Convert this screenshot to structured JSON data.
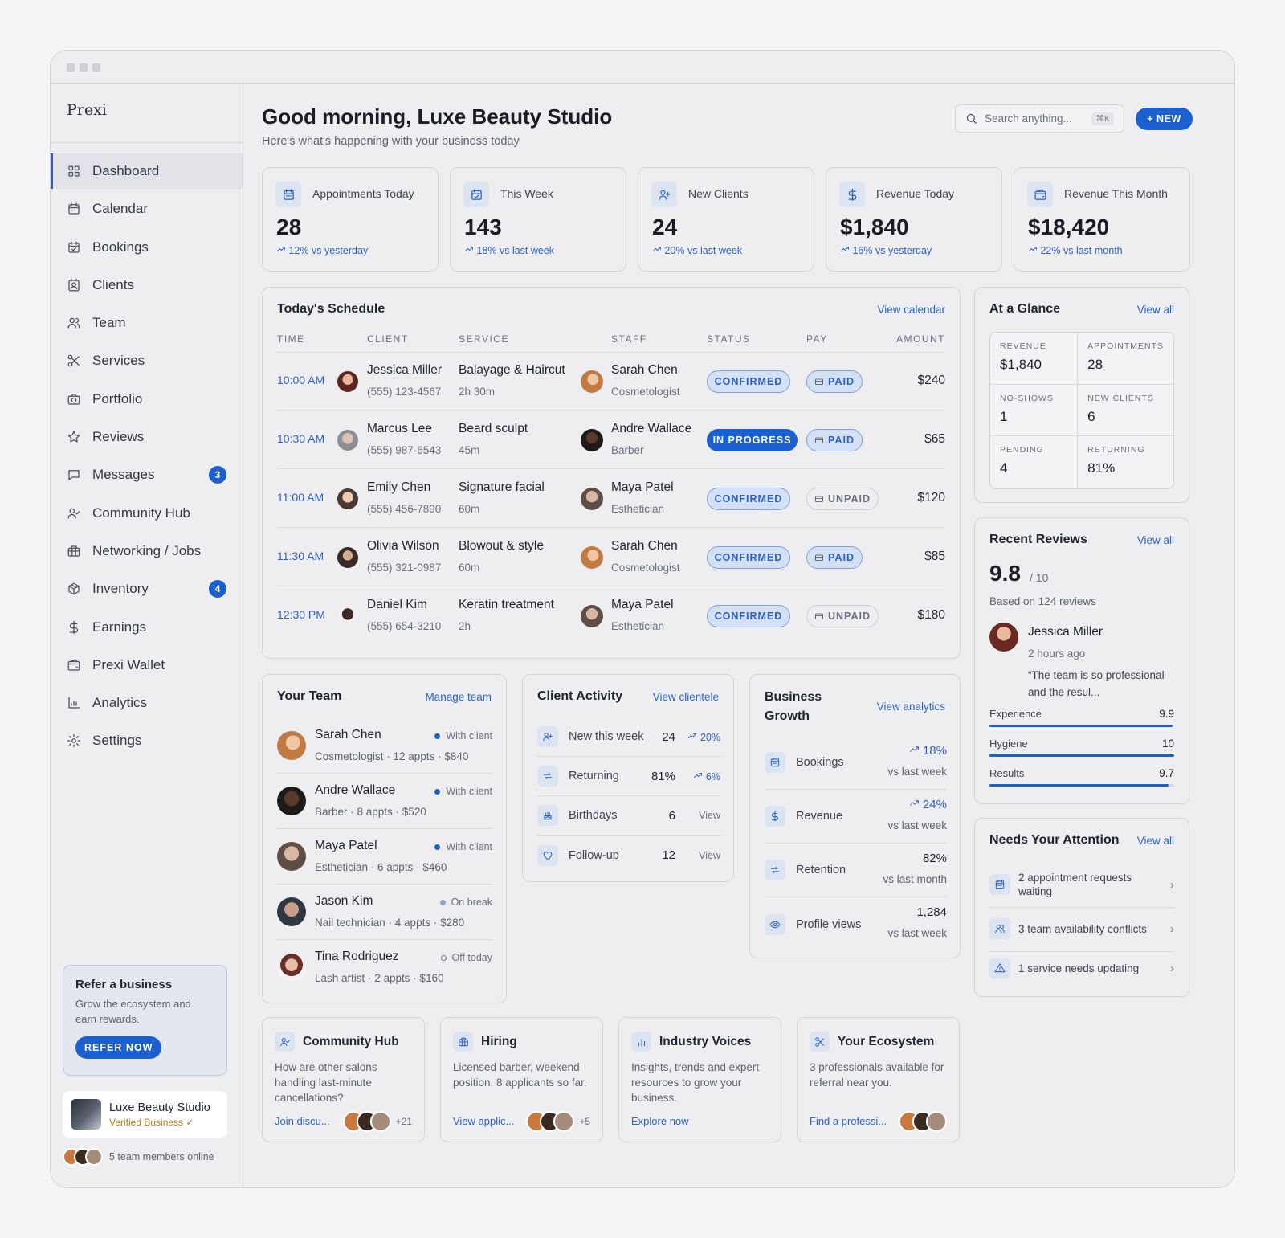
{
  "app": {
    "logo": "Prexi"
  },
  "nav": [
    {
      "label": "Dashboard",
      "icon": "grid-icon",
      "active": true
    },
    {
      "label": "Calendar",
      "icon": "calendar-icon"
    },
    {
      "label": "Bookings",
      "icon": "calendar-check-icon"
    },
    {
      "label": "Clients",
      "icon": "contact-icon"
    },
    {
      "label": "Team",
      "icon": "users-icon"
    },
    {
      "label": "Services",
      "icon": "scissors-icon"
    },
    {
      "label": "Portfolio",
      "icon": "camera-icon"
    },
    {
      "label": "Reviews",
      "icon": "star-icon"
    },
    {
      "label": "Messages",
      "icon": "message-icon",
      "badge": "3"
    },
    {
      "label": "Community Hub",
      "icon": "people-icon"
    },
    {
      "label": "Networking / Jobs",
      "icon": "briefcase-icon"
    },
    {
      "label": "Inventory",
      "icon": "box-icon",
      "badge": "4"
    },
    {
      "label": "Earnings",
      "icon": "dollar-icon"
    },
    {
      "label": "Prexi Wallet",
      "icon": "wallet-icon"
    },
    {
      "label": "Analytics",
      "icon": "chart-icon"
    },
    {
      "label": "Settings",
      "icon": "gear-icon"
    }
  ],
  "refer": {
    "title": "Refer a business",
    "desc": "Grow the ecosystem and earn rewards.",
    "button": "REFER NOW"
  },
  "business": {
    "name": "Luxe Beauty Studio",
    "verified": "Verified Business ✓"
  },
  "online": "5 team members online",
  "header": {
    "greeting": "Good morning, Luxe Beauty Studio",
    "subtitle": "Here's what's happening with your business today",
    "search_placeholder": "Search anything...",
    "search_kbd": "⌘K",
    "new_button": "+ NEW"
  },
  "stats": [
    {
      "label": "Appointments Today",
      "value": "28",
      "delta": "12% vs yesterday",
      "icon": "calendar-icon"
    },
    {
      "label": "This Week",
      "value": "143",
      "delta": "18% vs last week",
      "icon": "calendar-check-icon"
    },
    {
      "label": "New Clients",
      "value": "24",
      "delta": "20% vs last week",
      "icon": "user-plus-icon"
    },
    {
      "label": "Revenue Today",
      "value": "$1,840",
      "delta": "16% vs yesterday",
      "icon": "dollar-icon"
    },
    {
      "label": "Revenue This Month",
      "value": "$18,420",
      "delta": "22% vs last month",
      "icon": "wallet-icon"
    }
  ],
  "schedule": {
    "title": "Today's Schedule",
    "link": "View calendar",
    "columns": [
      "TIME",
      "CLIENT",
      "SERVICE",
      "STAFF",
      "STATUS",
      "PAY",
      "AMOUNT"
    ],
    "rows": [
      {
        "time": "10:00 AM",
        "client": "Jessica Miller",
        "phone": "(555) 123-4567",
        "service": "Balayage & Haircut",
        "duration": "2h 30m",
        "staff": "Sarah Chen",
        "role": "Cosmetologist",
        "status": "CONFIRMED",
        "pay": "PAID",
        "amount": "$240"
      },
      {
        "time": "10:30 AM",
        "client": "Marcus Lee",
        "phone": "(555) 987-6543",
        "service": "Beard sculpt",
        "duration": "45m",
        "staff": "Andre Wallace",
        "role": "Barber",
        "status": "IN PROGRESS",
        "pay": "PAID",
        "amount": "$65"
      },
      {
        "time": "11:00 AM",
        "client": "Emily Chen",
        "phone": "(555) 456-7890",
        "service": "Signature facial",
        "duration": "60m",
        "staff": "Maya Patel",
        "role": "Esthetician",
        "status": "CONFIRMED",
        "pay": "UNPAID",
        "amount": "$120"
      },
      {
        "time": "11:30 AM",
        "client": "Olivia Wilson",
        "phone": "(555) 321-0987",
        "service": "Blowout & style",
        "duration": "60m",
        "staff": "Sarah Chen",
        "role": "Cosmetologist",
        "status": "CONFIRMED",
        "pay": "PAID",
        "amount": "$85"
      },
      {
        "time": "12:30 PM",
        "client": "Daniel Kim",
        "phone": "(555) 654-3210",
        "service": "Keratin treatment",
        "duration": "2h",
        "staff": "Maya Patel",
        "role": "Esthetician",
        "status": "CONFIRMED",
        "pay": "UNPAID",
        "amount": "$180"
      }
    ]
  },
  "glance": {
    "title": "At a Glance",
    "link": "View all",
    "cells": [
      {
        "label": "REVENUE",
        "value": "$1,840"
      },
      {
        "label": "APPOINTMENTS",
        "value": "28"
      },
      {
        "label": "NO-SHOWS",
        "value": "1"
      },
      {
        "label": "NEW CLIENTS",
        "value": "6"
      },
      {
        "label": "PENDING",
        "value": "4"
      },
      {
        "label": "RETURNING",
        "value": "81%"
      }
    ]
  },
  "reviews": {
    "title": "Recent Reviews",
    "link": "View all",
    "score": "9.8",
    "out_of": "/ 10",
    "based": "Based on 124 reviews",
    "reviewer": "Jessica Miller",
    "time": "2 hours ago",
    "quote": "“The team is so professional and the resul...",
    "bars": [
      {
        "label": "Experience",
        "value": "9.9",
        "fraction": 0.99
      },
      {
        "label": "Hygiene",
        "value": "10",
        "fraction": 1.0
      },
      {
        "label": "Results",
        "value": "9.7",
        "fraction": 0.97
      }
    ]
  },
  "attention": {
    "title": "Needs Your Attention",
    "link": "View all",
    "items": [
      {
        "text": "2 appointment requests waiting",
        "icon": "calendar-icon"
      },
      {
        "text": "3 team availability conflicts",
        "icon": "users-icon"
      },
      {
        "text": "1 service needs updating",
        "icon": "warning-icon"
      }
    ]
  },
  "team": {
    "title": "Your Team",
    "link": "Manage team",
    "members": [
      {
        "name": "Sarah Chen",
        "meta": "Cosmetologist · 12 appts · $840",
        "status": "With client",
        "status_color": "#1c5fce"
      },
      {
        "name": "Andre Wallace",
        "meta": "Barber · 8 appts · $520",
        "status": "With client",
        "status_color": "#1c5fce"
      },
      {
        "name": "Maya Patel",
        "meta": "Esthetician · 6 appts · $460",
        "status": "With client",
        "status_color": "#1c5fce"
      },
      {
        "name": "Jason Kim",
        "meta": "Nail technician · 4 appts · $280",
        "status": "On break",
        "status_color": "#8fa6d0"
      },
      {
        "name": "Tina Rodriguez",
        "meta": "Lash artist · 2 appts · $160",
        "status": "Off today",
        "status_color": "#ffffff"
      }
    ]
  },
  "activity": {
    "title": "Client Activity",
    "link": "View clientele",
    "rows": [
      {
        "label": "New this week",
        "value": "24",
        "delta": "20%",
        "icon": "user-plus-icon"
      },
      {
        "label": "Returning",
        "value": "81%",
        "delta": "6%",
        "icon": "repeat-icon"
      },
      {
        "label": "Birthdays",
        "value": "6",
        "action": "View",
        "icon": "cake-icon"
      },
      {
        "label": "Follow-up",
        "value": "12",
        "action": "View",
        "icon": "heart-icon"
      }
    ]
  },
  "growth": {
    "title": "Business Growth",
    "link": "View analytics",
    "rows": [
      {
        "label": "Bookings",
        "value": "18%",
        "sub": "vs last week",
        "up": true,
        "icon": "calendar-icon"
      },
      {
        "label": "Revenue",
        "value": "24%",
        "sub": "vs last week",
        "up": true,
        "icon": "dollar-icon"
      },
      {
        "label": "Retention",
        "value": "82%",
        "sub": "vs last month",
        "up": false,
        "icon": "repeat-icon"
      },
      {
        "label": "Profile views",
        "value": "1,284",
        "sub": "vs last week",
        "up": false,
        "icon": "eye-icon"
      }
    ]
  },
  "bottom_cards": [
    {
      "title": "Community Hub",
      "desc": "How are other salons handling last-minute cancellations?",
      "link": "Join discu...",
      "extra": "+21",
      "icon": "people-icon",
      "avatars": 3
    },
    {
      "title": "Hiring",
      "desc": "Licensed barber, weekend position. 8 applicants so far.",
      "link": "View applic...",
      "extra": "+5",
      "icon": "briefcase-icon",
      "avatars": 3
    },
    {
      "title": "Industry Voices",
      "desc": "Insights, trends and expert resources to grow your business.",
      "link": "Explore now",
      "extra": "",
      "icon": "bars-icon",
      "avatars": 0
    },
    {
      "title": "Your Ecosystem",
      "desc": "3 professionals available for referral near you.",
      "link": "Find a professi...",
      "extra": "",
      "icon": "scissors-icon",
      "avatars": 3
    }
  ],
  "colors": {
    "accent": "#1c5fce",
    "link": "#2d62c4",
    "background": "#eeeef1"
  }
}
